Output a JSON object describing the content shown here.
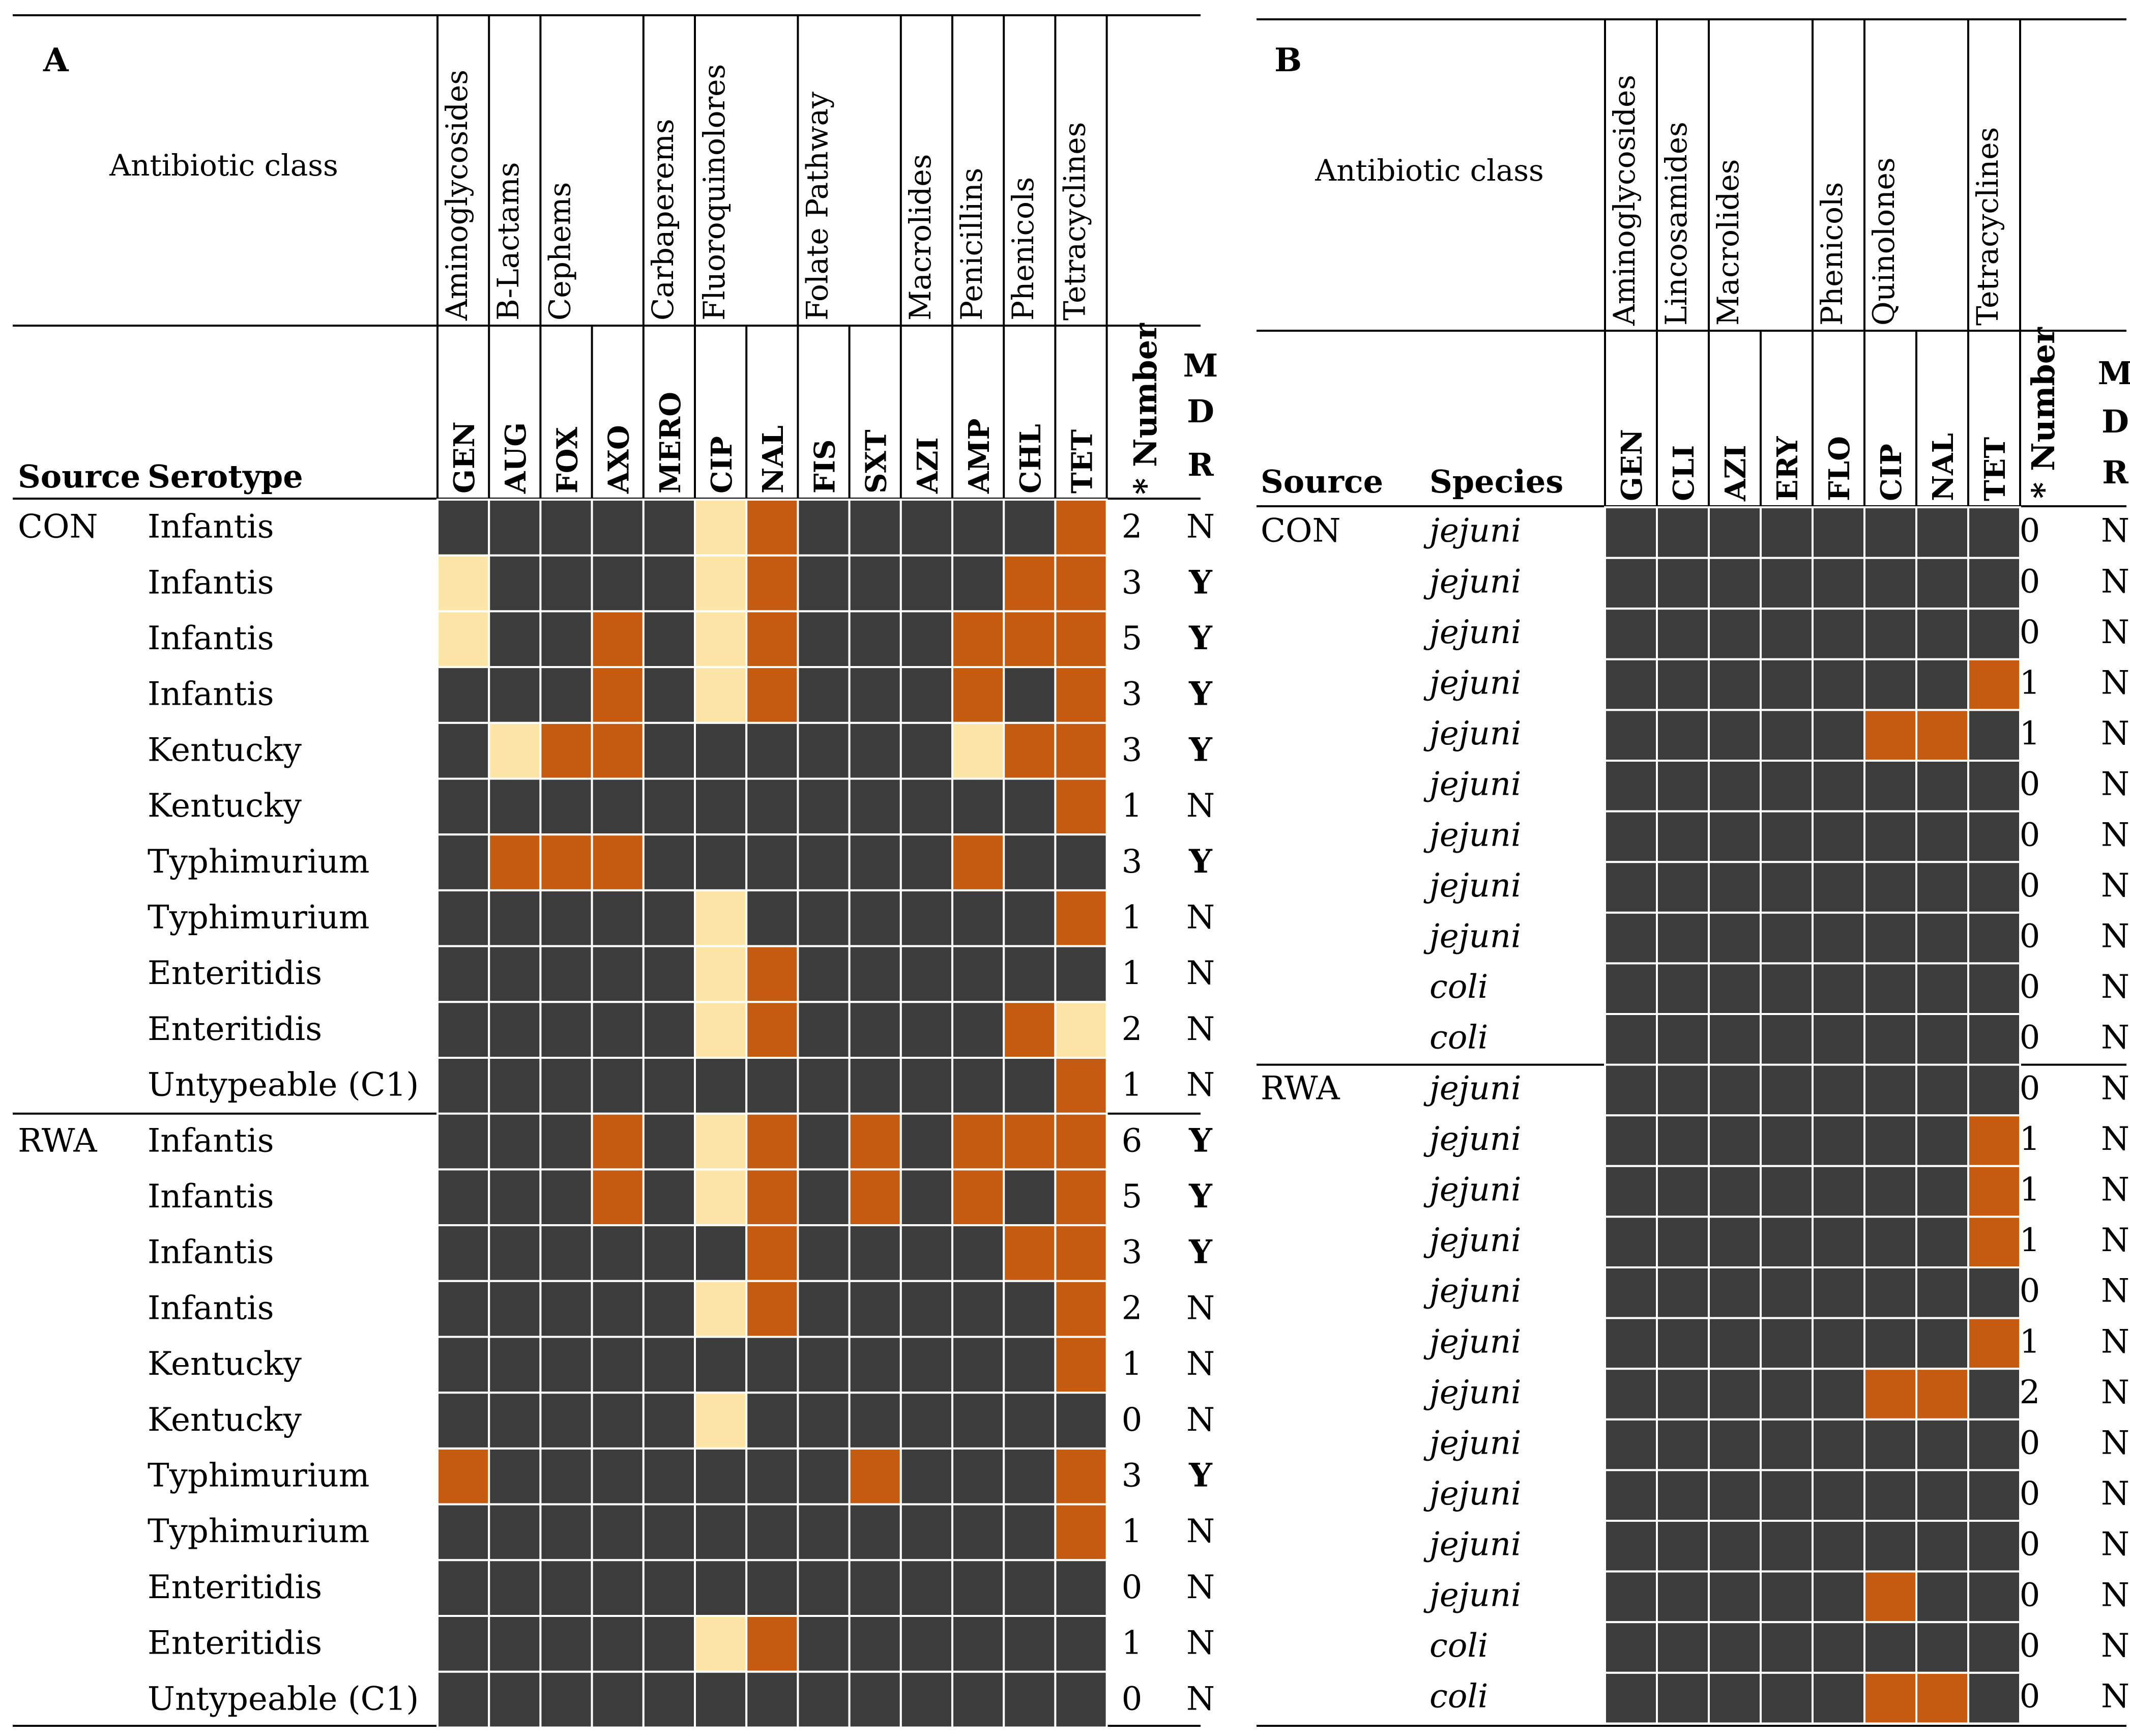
{
  "colors": {
    "susceptible": "#3c3c3c",
    "intermediate": "#fce5a6",
    "resistant": "#c55a11",
    "grid": "#ffffff",
    "rule": "#000000"
  },
  "chart_data": [
    {
      "type": "heatmap",
      "panel": "A",
      "class_header": "Antibiotic class",
      "source_header": "Source",
      "row_header": "Serotype",
      "number_header": "* Number",
      "mdr_header": [
        "M",
        "D",
        "R"
      ],
      "classes": [
        {
          "name": "Aminoglycosides",
          "drugs": [
            "GEN"
          ]
        },
        {
          "name": "B-Lactams",
          "drugs": [
            "AUG"
          ]
        },
        {
          "name": "Cephems",
          "drugs": [
            "FOX",
            "AXO"
          ]
        },
        {
          "name": "Carbaperems",
          "drugs": [
            "MERO"
          ]
        },
        {
          "name": "Fluoroquinolores",
          "drugs": [
            "CIP",
            "NAL"
          ]
        },
        {
          "name": "Folate Pathway",
          "drugs": [
            "FIS",
            "SXT"
          ]
        },
        {
          "name": "Macrolides",
          "drugs": [
            "AZI"
          ]
        },
        {
          "name": "Penicillins",
          "drugs": [
            "AMP"
          ]
        },
        {
          "name": "Phenicols",
          "drugs": [
            "CHL"
          ]
        },
        {
          "name": "Tetracyclines",
          "drugs": [
            "TET"
          ]
        }
      ],
      "drugs": [
        "GEN",
        "AUG",
        "FOX",
        "AXO",
        "MERO",
        "CIP",
        "NAL",
        "FIS",
        "SXT",
        "AZI",
        "AMP",
        "CHL",
        "TET"
      ],
      "value_legend": {
        "0": "susceptible",
        "1": "intermediate",
        "2": "resistant"
      },
      "groups": [
        {
          "source": "CON",
          "rows": [
            {
              "label": "Infantis",
              "values": [
                0,
                0,
                0,
                0,
                0,
                1,
                2,
                0,
                0,
                0,
                0,
                0,
                2
              ],
              "number": "2",
              "mdr": "N"
            },
            {
              "label": "Infantis",
              "values": [
                1,
                0,
                0,
                0,
                0,
                1,
                2,
                0,
                0,
                0,
                0,
                2,
                2
              ],
              "number": "3",
              "mdr": "Y"
            },
            {
              "label": "Infantis",
              "values": [
                1,
                0,
                0,
                2,
                0,
                1,
                2,
                0,
                0,
                0,
                2,
                2,
                2
              ],
              "number": "5",
              "mdr": "Y"
            },
            {
              "label": "Infantis",
              "values": [
                0,
                0,
                0,
                2,
                0,
                1,
                2,
                0,
                0,
                0,
                2,
                0,
                2
              ],
              "number": "3",
              "mdr": "Y"
            },
            {
              "label": "Kentucky",
              "values": [
                0,
                1,
                2,
                2,
                0,
                0,
                0,
                0,
                0,
                0,
                1,
                2,
                2
              ],
              "number": "3",
              "mdr": "Y"
            },
            {
              "label": "Kentucky",
              "values": [
                0,
                0,
                0,
                0,
                0,
                0,
                0,
                0,
                0,
                0,
                0,
                0,
                2
              ],
              "number": "1",
              "mdr": "N"
            },
            {
              "label": "Typhimurium",
              "values": [
                0,
                2,
                2,
                2,
                0,
                0,
                0,
                0,
                0,
                0,
                2,
                0,
                0
              ],
              "number": "3",
              "mdr": "Y"
            },
            {
              "label": "Typhimurium",
              "values": [
                0,
                0,
                0,
                0,
                0,
                1,
                0,
                0,
                0,
                0,
                0,
                0,
                2
              ],
              "number": "1",
              "mdr": "N"
            },
            {
              "label": "Enteritidis",
              "values": [
                0,
                0,
                0,
                0,
                0,
                1,
                2,
                0,
                0,
                0,
                0,
                0,
                0
              ],
              "number": "1",
              "mdr": "N"
            },
            {
              "label": "Enteritidis",
              "values": [
                0,
                0,
                0,
                0,
                0,
                1,
                2,
                0,
                0,
                0,
                0,
                2,
                1
              ],
              "number": "2",
              "mdr": "N"
            },
            {
              "label": "Untypeable (C1)",
              "values": [
                0,
                0,
                0,
                0,
                0,
                0,
                0,
                0,
                0,
                0,
                0,
                0,
                2
              ],
              "number": "1",
              "mdr": "N"
            }
          ]
        },
        {
          "source": "RWA",
          "rows": [
            {
              "label": "Infantis",
              "values": [
                0,
                0,
                0,
                2,
                0,
                1,
                2,
                0,
                2,
                0,
                2,
                2,
                2
              ],
              "number": "6",
              "mdr": "Y"
            },
            {
              "label": "Infantis",
              "values": [
                0,
                0,
                0,
                2,
                0,
                1,
                2,
                0,
                2,
                0,
                2,
                0,
                2
              ],
              "number": "5",
              "mdr": "Y"
            },
            {
              "label": "Infantis",
              "values": [
                0,
                0,
                0,
                0,
                0,
                0,
                2,
                0,
                0,
                0,
                0,
                2,
                2
              ],
              "number": "3",
              "mdr": "Y"
            },
            {
              "label": "Infantis",
              "values": [
                0,
                0,
                0,
                0,
                0,
                1,
                2,
                0,
                0,
                0,
                0,
                0,
                2
              ],
              "number": "2",
              "mdr": "N"
            },
            {
              "label": "Kentucky",
              "values": [
                0,
                0,
                0,
                0,
                0,
                0,
                0,
                0,
                0,
                0,
                0,
                0,
                2
              ],
              "number": "1",
              "mdr": "N"
            },
            {
              "label": "Kentucky",
              "values": [
                0,
                0,
                0,
                0,
                0,
                1,
                0,
                0,
                0,
                0,
                0,
                0,
                0
              ],
              "number": "0",
              "mdr": "N"
            },
            {
              "label": "Typhimurium",
              "values": [
                2,
                0,
                0,
                0,
                0,
                0,
                0,
                0,
                2,
                0,
                0,
                0,
                2
              ],
              "number": "3",
              "mdr": "Y"
            },
            {
              "label": "Typhimurium",
              "values": [
                0,
                0,
                0,
                0,
                0,
                0,
                0,
                0,
                0,
                0,
                0,
                0,
                2
              ],
              "number": "1",
              "mdr": "N"
            },
            {
              "label": "Enteritidis",
              "values": [
                0,
                0,
                0,
                0,
                0,
                0,
                0,
                0,
                0,
                0,
                0,
                0,
                0
              ],
              "number": "0",
              "mdr": "N"
            },
            {
              "label": "Enteritidis",
              "values": [
                0,
                0,
                0,
                0,
                0,
                1,
                2,
                0,
                0,
                0,
                0,
                0,
                0
              ],
              "number": "1",
              "mdr": "N"
            },
            {
              "label": "Untypeable (C1)",
              "values": [
                0,
                0,
                0,
                0,
                0,
                0,
                0,
                0,
                0,
                0,
                0,
                0,
                0
              ],
              "number": "0",
              "mdr": "N"
            }
          ]
        }
      ]
    },
    {
      "type": "heatmap",
      "panel": "B",
      "class_header": "Antibiotic class",
      "source_header": "Source",
      "row_header": "Species",
      "number_header": "* Number",
      "mdr_header": [
        "M",
        "D",
        "R"
      ],
      "classes": [
        {
          "name": "Aminoglycosides",
          "drugs": [
            "GEN"
          ]
        },
        {
          "name": "Lincosamides",
          "drugs": [
            "CLI"
          ]
        },
        {
          "name": "Macrolides",
          "drugs": [
            "AZI",
            "ERY"
          ]
        },
        {
          "name": "Phenicols",
          "drugs": [
            "FLO"
          ]
        },
        {
          "name": "Quinolones",
          "drugs": [
            "CIP",
            "NAL"
          ]
        },
        {
          "name": "Tetracyclines",
          "drugs": [
            "TET"
          ]
        }
      ],
      "drugs": [
        "GEN",
        "CLI",
        "AZI",
        "ERY",
        "FLO",
        "CIP",
        "NAL",
        "TET"
      ],
      "value_legend": {
        "0": "susceptible",
        "2": "resistant"
      },
      "groups": [
        {
          "source": "CON",
          "rows": [
            {
              "label": "jejuni",
              "values": [
                0,
                0,
                0,
                0,
                0,
                0,
                0,
                0
              ],
              "number": "0",
              "mdr": "N"
            },
            {
              "label": "jejuni",
              "values": [
                0,
                0,
                0,
                0,
                0,
                0,
                0,
                0
              ],
              "number": "0",
              "mdr": "N"
            },
            {
              "label": "jejuni",
              "values": [
                0,
                0,
                0,
                0,
                0,
                0,
                0,
                0
              ],
              "number": "0",
              "mdr": "N"
            },
            {
              "label": "jejuni",
              "values": [
                0,
                0,
                0,
                0,
                0,
                0,
                0,
                2
              ],
              "number": "1",
              "mdr": "N"
            },
            {
              "label": "jejuni",
              "values": [
                0,
                0,
                0,
                0,
                0,
                2,
                2,
                0
              ],
              "number": "1",
              "mdr": "N"
            },
            {
              "label": "jejuni",
              "values": [
                0,
                0,
                0,
                0,
                0,
                0,
                0,
                0
              ],
              "number": "0",
              "mdr": "N"
            },
            {
              "label": "jejuni",
              "values": [
                0,
                0,
                0,
                0,
                0,
                0,
                0,
                0
              ],
              "number": "0",
              "mdr": "N"
            },
            {
              "label": "jejuni",
              "values": [
                0,
                0,
                0,
                0,
                0,
                0,
                0,
                0
              ],
              "number": "0",
              "mdr": "N"
            },
            {
              "label": "jejuni",
              "values": [
                0,
                0,
                0,
                0,
                0,
                0,
                0,
                0
              ],
              "number": "0",
              "mdr": "N"
            },
            {
              "label": "coli",
              "values": [
                0,
                0,
                0,
                0,
                0,
                0,
                0,
                0
              ],
              "number": "0",
              "mdr": "N"
            },
            {
              "label": "coli",
              "values": [
                0,
                0,
                0,
                0,
                0,
                0,
                0,
                0
              ],
              "number": "0",
              "mdr": "N"
            }
          ]
        },
        {
          "source": "RWA",
          "rows": [
            {
              "label": "jejuni",
              "values": [
                0,
                0,
                0,
                0,
                0,
                0,
                0,
                0
              ],
              "number": "0",
              "mdr": "N"
            },
            {
              "label": "jejuni",
              "values": [
                0,
                0,
                0,
                0,
                0,
                0,
                0,
                2
              ],
              "number": "1",
              "mdr": "N"
            },
            {
              "label": "jejuni",
              "values": [
                0,
                0,
                0,
                0,
                0,
                0,
                0,
                2
              ],
              "number": "1",
              "mdr": "N"
            },
            {
              "label": "jejuni",
              "values": [
                0,
                0,
                0,
                0,
                0,
                0,
                0,
                2
              ],
              "number": "1",
              "mdr": "N"
            },
            {
              "label": "jejuni",
              "values": [
                0,
                0,
                0,
                0,
                0,
                0,
                0,
                0
              ],
              "number": "0",
              "mdr": "N"
            },
            {
              "label": "jejuni",
              "values": [
                0,
                0,
                0,
                0,
                0,
                0,
                0,
                2
              ],
              "number": "1",
              "mdr": "N"
            },
            {
              "label": "jejuni",
              "values": [
                0,
                0,
                0,
                0,
                0,
                2,
                2,
                0
              ],
              "number": "2",
              "mdr": "N"
            },
            {
              "label": "jejuni",
              "values": [
                0,
                0,
                0,
                0,
                0,
                0,
                0,
                0
              ],
              "number": "0",
              "mdr": "N"
            },
            {
              "label": "jejuni",
              "values": [
                0,
                0,
                0,
                0,
                0,
                0,
                0,
                0
              ],
              "number": "0",
              "mdr": "N"
            },
            {
              "label": "jejuni",
              "values": [
                0,
                0,
                0,
                0,
                0,
                0,
                0,
                0
              ],
              "number": "0",
              "mdr": "N"
            },
            {
              "label": "jejuni",
              "values": [
                0,
                0,
                0,
                0,
                0,
                2,
                0,
                0
              ],
              "number": "0",
              "mdr": "N"
            },
            {
              "label": "coli",
              "values": [
                0,
                0,
                0,
                0,
                0,
                0,
                0,
                0
              ],
              "number": "0",
              "mdr": "N"
            },
            {
              "label": "coli",
              "values": [
                0,
                0,
                0,
                0,
                0,
                2,
                2,
                0
              ],
              "number": "0",
              "mdr": "N"
            }
          ]
        }
      ]
    }
  ]
}
